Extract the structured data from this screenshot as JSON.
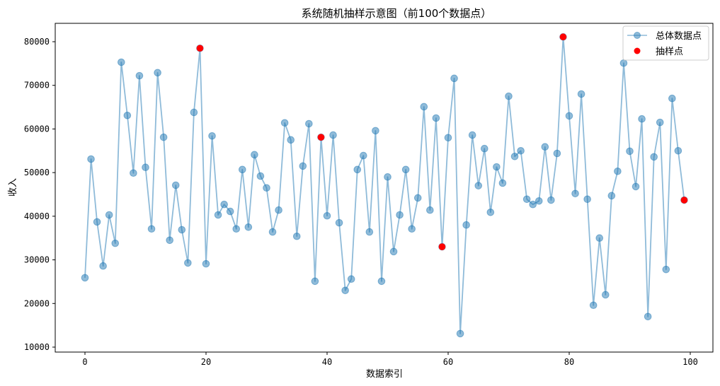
{
  "chart_data": {
    "type": "line",
    "title": "系统随机抽样示意图（前100个数据点）",
    "xlabel": "数据索引",
    "ylabel": "收入",
    "xlim": [
      -5,
      104
    ],
    "ylim": [
      9000,
      84500
    ],
    "x_ticks": [
      0,
      20,
      40,
      60,
      80,
      100
    ],
    "y_ticks": [
      10000,
      20000,
      30000,
      40000,
      50000,
      60000,
      70000,
      80000
    ],
    "grid": false,
    "legend_position": "upper right",
    "series": [
      {
        "name": "总体数据点",
        "style": "line+marker",
        "color": "#1f77b4",
        "alpha": 0.5,
        "x": [
          0,
          1,
          2,
          3,
          4,
          5,
          6,
          7,
          8,
          9,
          10,
          11,
          12,
          13,
          14,
          15,
          16,
          17,
          18,
          19,
          20,
          21,
          22,
          23,
          24,
          25,
          26,
          27,
          28,
          29,
          30,
          31,
          32,
          33,
          34,
          35,
          36,
          37,
          38,
          39,
          40,
          41,
          42,
          43,
          44,
          45,
          46,
          47,
          48,
          49,
          50,
          51,
          52,
          53,
          54,
          55,
          56,
          57,
          58,
          59,
          60,
          61,
          62,
          63,
          64,
          65,
          66,
          67,
          68,
          69,
          70,
          71,
          72,
          73,
          74,
          75,
          76,
          77,
          78,
          79,
          80,
          81,
          82,
          83,
          84,
          85,
          86,
          87,
          88,
          89,
          90,
          91,
          92,
          93,
          94,
          95,
          96,
          97,
          98,
          99
        ],
        "values": [
          25900,
          53100,
          38700,
          28600,
          40300,
          33800,
          75300,
          63100,
          49900,
          72200,
          51200,
          37100,
          72900,
          58100,
          34500,
          47100,
          36900,
          29300,
          63800,
          78500,
          29100,
          58400,
          40300,
          42700,
          41100,
          37100,
          50700,
          37500,
          54100,
          49200,
          46500,
          36400,
          41400,
          61400,
          57500,
          35400,
          51500,
          61200,
          25100,
          58100,
          40100,
          58600,
          38500,
          23000,
          25600,
          50700,
          53900,
          36400,
          59600,
          25100,
          49000,
          31900,
          40300,
          50700,
          37100,
          44200,
          65100,
          41400,
          62500,
          33000,
          58000,
          71600,
          13100,
          38000,
          58600,
          47000,
          55500,
          40900,
          51300,
          47600,
          67500,
          53700,
          55000,
          43900,
          42700,
          43500,
          55900,
          43700,
          54400,
          81100,
          63000,
          45200,
          68000,
          43900,
          19600,
          35000,
          22000,
          44700,
          50300,
          75100,
          54900,
          46800,
          62300,
          17000,
          53600,
          61500,
          27800,
          67000,
          55000,
          43700
        ]
      },
      {
        "name": "抽样点",
        "style": "marker",
        "color": "#ff0000",
        "x": [
          19,
          39,
          59,
          79,
          99
        ],
        "values": [
          78500,
          58100,
          33000,
          81100,
          43700
        ]
      }
    ]
  },
  "legend": {
    "items": [
      "总体数据点",
      "抽样点"
    ]
  }
}
